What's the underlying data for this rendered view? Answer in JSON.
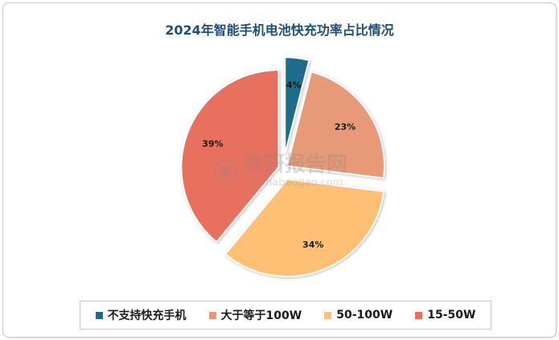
{
  "chart_data": {
    "type": "pie",
    "title": "2024年智能手机电池快充功率占比情况",
    "categories": [
      "不支持快充手机",
      "大于等于100W",
      "50-100W",
      "15-50W"
    ],
    "values": [
      4,
      23,
      34,
      39
    ],
    "data_labels": [
      "4%",
      "23%",
      "34%",
      "39%"
    ],
    "colors": [
      "#1f6b8c",
      "#e89a78",
      "#fdc074",
      "#e8705f"
    ],
    "exploded": true,
    "legend_position": "bottom"
  },
  "watermark": {
    "text_cn": "观研报告网",
    "text_en": "chinabaogao.com"
  }
}
